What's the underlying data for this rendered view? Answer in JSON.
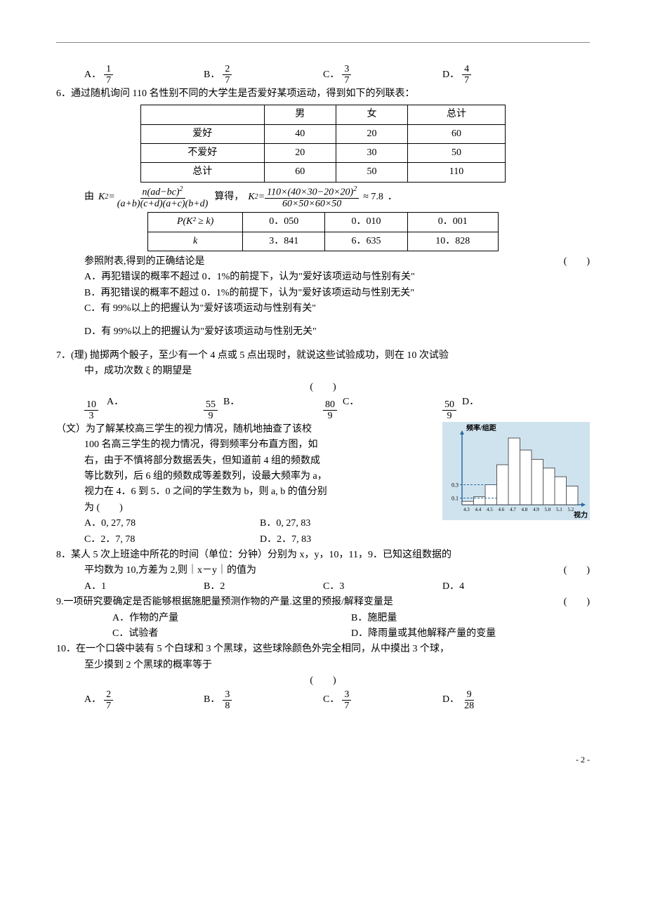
{
  "q5_opts": {
    "A": {
      "label": "A．",
      "n": "1",
      "d": "7"
    },
    "B": {
      "label": "B．",
      "n": "2",
      "d": "7"
    },
    "C": {
      "label": "C．",
      "n": "3",
      "d": "7"
    },
    "D": {
      "label": "D．",
      "n": "4",
      "d": "7"
    }
  },
  "q6": {
    "stem": "6．通过随机询问 110 名性别不同的大学生是否爱好某项运动，得到如下的列联表：",
    "table1": {
      "headers": [
        "",
        "男",
        "女",
        "总计"
      ],
      "rows": [
        [
          "爱好",
          "40",
          "20",
          "60"
        ],
        [
          "不爱好",
          "20",
          "30",
          "50"
        ],
        [
          "总计",
          "60",
          "50",
          "110"
        ]
      ]
    },
    "formula_lead": "由",
    "formula_mid": "算得，",
    "k2_num": "110×(40×30−20×20)",
    "k2_den": "60×50×60×50",
    "k2_approx": "≈ 7.8",
    "table2": {
      "row1": [
        "P(K² ≥ k)",
        "0．050",
        "0．010",
        "0．001"
      ],
      "row2": [
        "k",
        "3．841",
        "6．635",
        "10．828"
      ]
    },
    "conclusion_line": "参照附表,得到的正确结论是",
    "opts": {
      "A": "A．再犯错误的概率不超过 0．1%的前提下，认为\"爱好该项运动与性别有关\"",
      "B": "B．再犯错误的概率不超过 0．1%的前提下，认为\"爱好该项运动与性别无关\"",
      "C": "C．有 99%以上的把握认为\"爱好该项运动与性别有关\"",
      "D": "D．有 99%以上的把握认为\"爱好该项运动与性别无关\""
    }
  },
  "q7li": {
    "stem1": "7．(理) 抛掷两个骰子，至少有一个 4 点或 5 点出现时，就说这些试验成功，则在 10 次试验",
    "stem2": "中，成功次数 ξ 的期望是",
    "opts": {
      "A": {
        "label": "A．",
        "n": "10",
        "d": "3"
      },
      "B": {
        "label": "B．",
        "n": "55",
        "d": "9"
      },
      "C": {
        "label": "C．",
        "n": "80",
        "d": "9"
      },
      "D": {
        "label": "D．",
        "n": "50",
        "d": "9"
      }
    }
  },
  "q7wen": {
    "lead": "（文）为了解某校高三学生的视力情况，随机地抽查了该校",
    "l2": "100 名高三学生的视力情况，得到频率分布直方图，如",
    "l3": "右，由于不慎将部分数据丢失，但知道前 4 组的频数成",
    "l4": "等比数列，后 6 组的频数成等差数列，设最大频率为 a，",
    "l5": "视力在 4．6 到 5．0 之间的学生数为 b，则 a, b 的值分别",
    "l6": "为 (　　)",
    "opts": {
      "A": "A．0, 27, 78",
      "B": "B．0, 27, 83",
      "C": "C．2．7, 78",
      "D": "D．2．7, 83"
    },
    "chart": {
      "ylabel": "频率/组距",
      "xlabel": "视力",
      "xticks": [
        "4.3",
        "4.4",
        "4.5",
        "4.6",
        "4.7",
        "4.8",
        "4.9",
        "5.0",
        "5.1",
        "5.2"
      ],
      "yticks": [
        "0.1",
        "0.3"
      ],
      "bars": [
        0.05,
        0.12,
        0.3,
        0.6,
        1.0,
        0.82,
        0.68,
        0.55,
        0.42,
        0.28
      ],
      "bar_color": "#ffffff",
      "border_color": "#555",
      "axis_color": "#2a6aa0",
      "bg_color": "#cfe3ef"
    }
  },
  "q8": {
    "stem1": "8．某人 5 次上班途中所花的时间（单位：分钟）分别为 x，y，10，11，9．已知这组数据的",
    "stem2": "平均数为 10,方差为 2,则｜x－y｜的值为",
    "opts": {
      "A": "A．1",
      "B": "B．2",
      "C": "C．3",
      "D": "D．4"
    }
  },
  "q9": {
    "stem": "9.一项研究要确定是否能够根据施肥量预测作物的产量.这里的预报/解释变量是",
    "opts": {
      "A": "A．作物的产量",
      "B": "B．施肥量",
      "C": "C．试验者",
      "D": "D．降雨量或其他解释产量的变量"
    }
  },
  "q10": {
    "stem1": "10．在一个口袋中装有 5 个白球和 3 个黑球，这些球除颜色外完全相同，从中摸出 3 个球，",
    "stem2": "至少摸到 2 个黑球的概率等于",
    "opts": {
      "A": {
        "label": "A．",
        "n": "2",
        "d": "7"
      },
      "B": {
        "label": "B．",
        "n": "3",
        "d": "8"
      },
      "C": {
        "label": "C．",
        "n": "3",
        "d": "7"
      },
      "D": {
        "label": "D．",
        "n": "9",
        "d": "28"
      }
    }
  },
  "paren": "(　　)",
  "page": "- 2 -"
}
